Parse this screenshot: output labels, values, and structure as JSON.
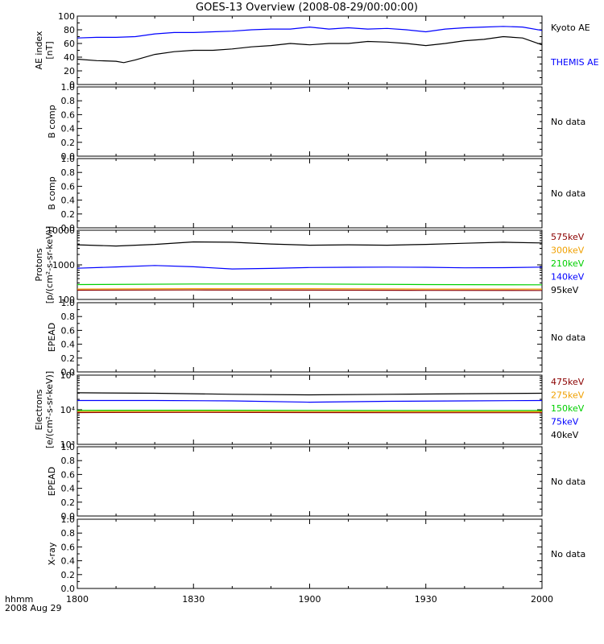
{
  "title": "GOES-13 Overview (2008-08-29/00:00:00)",
  "footer": {
    "time_format_label": "hhmm",
    "date_label": "2008 Aug 29"
  },
  "x_axis": {
    "range": [
      1800,
      2000
    ],
    "ticks": [
      1800,
      1830,
      1900,
      1930,
      2000
    ],
    "tick_labels": [
      "1800",
      "1830",
      "1900",
      "1930",
      "2000"
    ]
  },
  "colors": {
    "black": "#000000",
    "blue": "#0000ff",
    "green": "#00d000",
    "orange": "#f0a000",
    "darkred": "#8b0000"
  },
  "chart_data": [
    {
      "type": "line",
      "panel": "ae",
      "ylabel": [
        "AE index",
        "[nT]"
      ],
      "ylim": [
        0,
        100
      ],
      "yscale": "linear",
      "ytick_labels": [
        "0",
        "20",
        "40",
        "60",
        "80",
        "100"
      ],
      "side_labels": [
        {
          "text": "Kyoto AE",
          "color": "#000000"
        },
        {
          "text": "THEMIS AE",
          "color": "#0000ff"
        }
      ],
      "series": [
        {
          "name": "Kyoto AE",
          "color": "#000000",
          "x": [
            1800,
            1805,
            1810,
            1812,
            1815,
            1820,
            1825,
            1830,
            1835,
            1840,
            1845,
            1850,
            1855,
            1900,
            1905,
            1910,
            1915,
            1920,
            1925,
            1930,
            1935,
            1940,
            1945,
            1950,
            1955,
            2000
          ],
          "y": [
            37,
            35,
            34,
            32,
            36,
            44,
            48,
            50,
            50,
            52,
            55,
            57,
            60,
            58,
            60,
            60,
            63,
            62,
            60,
            57,
            60,
            64,
            66,
            70,
            68,
            58
          ]
        },
        {
          "name": "THEMIS AE",
          "color": "#0000ff",
          "x": [
            1800,
            1805,
            1810,
            1815,
            1820,
            1825,
            1830,
            1835,
            1840,
            1845,
            1850,
            1855,
            1900,
            1905,
            1910,
            1915,
            1920,
            1925,
            1930,
            1935,
            1940,
            1945,
            1950,
            1955,
            2000
          ],
          "y": [
            68,
            69,
            69,
            70,
            74,
            76,
            76,
            77,
            78,
            80,
            81,
            81,
            84,
            81,
            83,
            81,
            82,
            80,
            77,
            81,
            83,
            84,
            85,
            84,
            79
          ]
        }
      ]
    },
    {
      "type": "line",
      "panel": "b-comp-1",
      "ylabel": [
        "B comp"
      ],
      "ylim": [
        0,
        1
      ],
      "yscale": "linear",
      "ytick_labels": [
        "0.0",
        "0.2",
        "0.4",
        "0.6",
        "0.8",
        "1.0"
      ],
      "side_labels": [
        {
          "text": "No data",
          "color": "#000000"
        }
      ],
      "series": []
    },
    {
      "type": "line",
      "panel": "b-comp-2",
      "ylabel": [
        "B comp"
      ],
      "ylim": [
        0,
        1
      ],
      "yscale": "linear",
      "ytick_labels": [
        "0.0",
        "0.2",
        "0.4",
        "0.6",
        "0.8",
        "1.0"
      ],
      "side_labels": [
        {
          "text": "No data",
          "color": "#000000"
        }
      ],
      "series": []
    },
    {
      "type": "line",
      "panel": "protons",
      "ylabel": [
        "Protons",
        "[p/(cm²-s-sr-keV)]"
      ],
      "ylim": [
        100,
        10000
      ],
      "yscale": "log",
      "ytick_labels": [
        "100",
        "1000",
        "10000"
      ],
      "side_labels": [
        {
          "text": "575keV",
          "color": "#8b0000"
        },
        {
          "text": "300keV",
          "color": "#f0a000"
        },
        {
          "text": "210keV",
          "color": "#00d000"
        },
        {
          "text": "140keV",
          "color": "#0000ff"
        },
        {
          "text": "95keV",
          "color": "#000000"
        }
      ],
      "series": [
        {
          "name": "95keV",
          "color": "#000000",
          "x": [
            1800,
            1810,
            1820,
            1830,
            1840,
            1850,
            1900,
            1910,
            1920,
            1930,
            1940,
            1950,
            2000
          ],
          "y": [
            3800,
            3500,
            3900,
            4600,
            4500,
            4000,
            3700,
            3800,
            3700,
            3900,
            4200,
            4500,
            4300
          ]
        },
        {
          "name": "140keV",
          "color": "#0000ff",
          "x": [
            1800,
            1810,
            1820,
            1830,
            1840,
            1850,
            1900,
            1910,
            1920,
            1930,
            1940,
            1950,
            2000
          ],
          "y": [
            800,
            870,
            960,
            880,
            760,
            790,
            840,
            850,
            860,
            850,
            820,
            830,
            860
          ]
        },
        {
          "name": "210keV",
          "color": "#00d000",
          "x": [
            1800,
            1830,
            1900,
            1930,
            2000
          ],
          "y": [
            270,
            280,
            280,
            270,
            265
          ]
        },
        {
          "name": "300keV",
          "color": "#f0a000",
          "x": [
            1800,
            1830,
            1900,
            1930,
            2000
          ],
          "y": [
            200,
            205,
            205,
            200,
            200
          ]
        },
        {
          "name": "575keV",
          "color": "#8b0000",
          "x": [
            1800,
            1830,
            1900,
            1930,
            2000
          ],
          "y": [
            185,
            188,
            186,
            183,
            182
          ]
        }
      ]
    },
    {
      "type": "line",
      "panel": "epead-1",
      "ylabel": [
        "EPEAD"
      ],
      "ylim": [
        0,
        1
      ],
      "yscale": "linear",
      "ytick_labels": [
        "0.0",
        "0.2",
        "0.4",
        "0.6",
        "0.8",
        "1.0"
      ],
      "side_labels": [
        {
          "text": "No data",
          "color": "#000000"
        }
      ],
      "series": []
    },
    {
      "type": "line",
      "panel": "electrons",
      "ylabel": [
        "Electrons",
        "[e/(cm²-s-sr-keV)]"
      ],
      "ylim": [
        1000,
        100000
      ],
      "yscale": "log",
      "ytick_labels": [
        "10³",
        "10⁴",
        "10⁵"
      ],
      "side_labels": [
        {
          "text": "475keV",
          "color": "#8b0000"
        },
        {
          "text": "275keV",
          "color": "#f0a000"
        },
        {
          "text": "150keV",
          "color": "#00d000"
        },
        {
          "text": "75keV",
          "color": "#0000ff"
        },
        {
          "text": "40keV",
          "color": "#000000"
        }
      ],
      "series": [
        {
          "name": "40keV",
          "color": "#000000",
          "x": [
            1800,
            1820,
            1840,
            1900,
            1920,
            1940,
            2000
          ],
          "y": [
            31000,
            30000,
            28000,
            27000,
            28000,
            29000,
            30000
          ]
        },
        {
          "name": "75keV",
          "color": "#0000ff",
          "x": [
            1800,
            1820,
            1840,
            1900,
            1920,
            1940,
            2000
          ],
          "y": [
            18500,
            18500,
            18000,
            16500,
            17500,
            18000,
            18500
          ]
        },
        {
          "name": "150keV",
          "color": "#00d000",
          "x": [
            1800,
            1830,
            1900,
            1930,
            2000
          ],
          "y": [
            9600,
            9700,
            9600,
            9500,
            9500
          ]
        },
        {
          "name": "275keV",
          "color": "#f0a000",
          "x": [
            1800,
            1830,
            1900,
            1930,
            2000
          ],
          "y": [
            8900,
            9000,
            8900,
            8800,
            8800
          ]
        },
        {
          "name": "475keV",
          "color": "#8b0000",
          "x": [
            1800,
            1830,
            1900,
            1930,
            2000
          ],
          "y": [
            8300,
            8400,
            8300,
            8200,
            8200
          ]
        }
      ]
    },
    {
      "type": "line",
      "panel": "epead-2",
      "ylabel": [
        "EPEAD"
      ],
      "ylim": [
        0,
        1
      ],
      "yscale": "linear",
      "ytick_labels": [
        "0.0",
        "0.2",
        "0.4",
        "0.6",
        "0.8",
        "1.0"
      ],
      "side_labels": [
        {
          "text": "No data",
          "color": "#000000"
        }
      ],
      "series": []
    },
    {
      "type": "line",
      "panel": "x-ray",
      "ylabel": [
        "X-ray"
      ],
      "ylim": [
        0,
        1
      ],
      "yscale": "linear",
      "ytick_labels": [
        "0.0",
        "0.2",
        "0.4",
        "0.6",
        "0.8",
        "1.0"
      ],
      "side_labels": [
        {
          "text": "No data",
          "color": "#000000"
        }
      ],
      "series": []
    }
  ]
}
